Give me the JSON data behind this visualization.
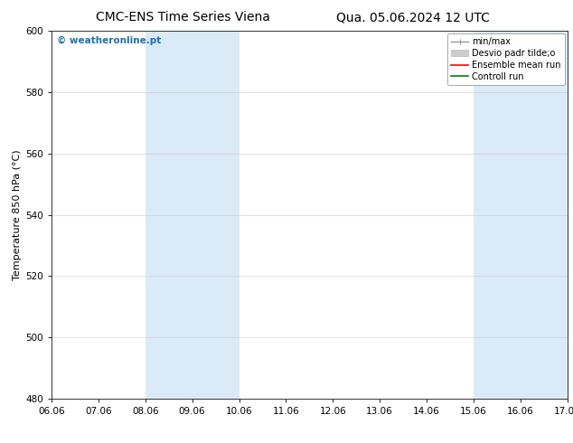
{
  "title_left": "CMC-ENS Time Series Viena",
  "title_right": "Qua. 05.06.2024 12 UTC",
  "ylabel": "Temperature 850 hPa (°C)",
  "xlim_min": 0,
  "xlim_max": 11,
  "ylim_min": 480,
  "ylim_max": 600,
  "yticks": [
    480,
    500,
    520,
    540,
    560,
    580,
    600
  ],
  "xtick_labels": [
    "06.06",
    "07.06",
    "08.06",
    "09.06",
    "10.06",
    "11.06",
    "12.06",
    "13.06",
    "14.06",
    "15.06",
    "16.06",
    "17.06"
  ],
  "shaded_bands": [
    {
      "x_start": 2,
      "x_end": 4,
      "color": "#daeaf7"
    },
    {
      "x_start": 9,
      "x_end": 11,
      "color": "#daeaf7"
    }
  ],
  "watermark_text": "© weatheronline.pt",
  "watermark_color": "#1e6fb5",
  "bg_color": "#ffffff",
  "plot_bg_color": "#ffffff",
  "legend_labels": [
    "min/max",
    "Desvio padr tilde;o",
    "Ensemble mean run",
    "Controll run"
  ],
  "legend_colors": [
    "#999999",
    "#cccccc",
    "#ff0000",
    "#008000"
  ],
  "grid_color": "#cccccc",
  "title_fontsize": 10,
  "tick_fontsize": 7.5,
  "ylabel_fontsize": 8,
  "watermark_fontsize": 7.5,
  "legend_fontsize": 7
}
